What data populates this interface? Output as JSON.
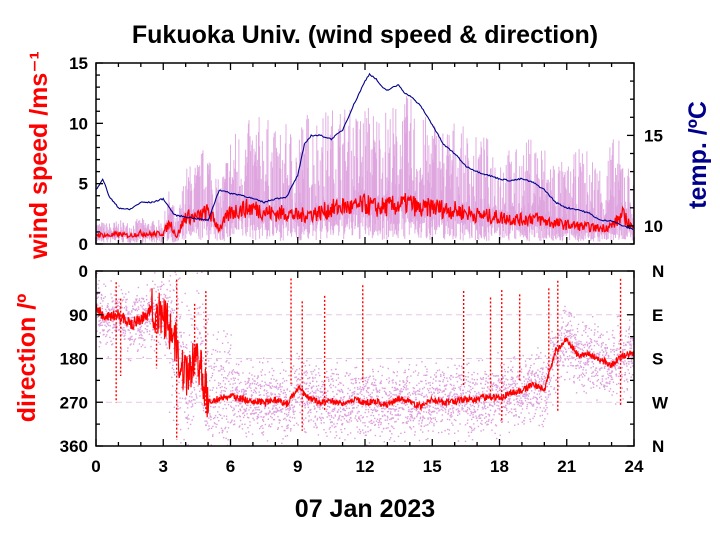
{
  "chart_data": [
    {
      "type": "line",
      "title": "Fukuoka Univ. (wind speed & direction)",
      "ylabel": "wind speed /ms⁻¹",
      "y2label": "temp. /ºC",
      "xlim": [
        0,
        24
      ],
      "ylim": [
        0,
        15
      ],
      "y2lim": [
        9,
        19
      ],
      "x_ticks": [
        "0",
        "3",
        "6",
        "9",
        "12",
        "15",
        "18",
        "21",
        "24"
      ],
      "y_ticks": [
        "0",
        "5",
        "10",
        "15"
      ],
      "y2_ticks": [
        "10",
        "15"
      ],
      "colors": {
        "mean_speed": "#ff0000",
        "gust_range": "#dda0dd",
        "temperature": "#00008b"
      },
      "series": [
        {
          "name": "",
          "role": "mean wind speed",
          "x": [
            0,
            0.5,
            1,
            1.5,
            2,
            2.5,
            3,
            3.3,
            3.6,
            4,
            4.5,
            5,
            5.5,
            6,
            6.5,
            7,
            7.5,
            8,
            8.5,
            9,
            9.5,
            10,
            10.5,
            11,
            11.5,
            12,
            12.5,
            13,
            13.5,
            14,
            14.5,
            15,
            15.5,
            16,
            16.5,
            17,
            17.5,
            18,
            18.5,
            19,
            19.5,
            20,
            20.5,
            21,
            21.5,
            22,
            22.5,
            23,
            23.5,
            24
          ],
          "y": [
            0.8,
            0.7,
            0.8,
            0.7,
            0.9,
            0.8,
            0.9,
            1.8,
            0.6,
            2.3,
            2.2,
            2.7,
            1.3,
            2.6,
            2.9,
            3.0,
            2.7,
            2.5,
            2.6,
            2.3,
            2.5,
            2.6,
            2.9,
            3.1,
            3.0,
            3.3,
            3.0,
            3.1,
            3.2,
            3.4,
            2.8,
            3.1,
            2.9,
            2.8,
            2.6,
            2.4,
            2.3,
            2.2,
            2.1,
            2.0,
            2.2,
            1.9,
            1.7,
            1.6,
            1.5,
            1.4,
            1.3,
            1.5,
            2.4,
            1.2
          ]
        },
        {
          "name": "",
          "role": "wind speed maximum (gust)",
          "x": [
            0,
            0.5,
            1,
            1.5,
            2,
            2.5,
            3,
            3.3,
            3.6,
            4,
            4.5,
            5,
            5.5,
            6,
            6.5,
            7,
            7.5,
            8,
            8.5,
            9,
            9.5,
            10,
            10.5,
            11,
            11.5,
            12,
            12.5,
            13,
            13.5,
            14,
            14.5,
            15,
            15.5,
            16,
            16.5,
            17,
            17.5,
            18,
            18.5,
            19,
            19.5,
            20,
            20.5,
            21,
            21.5,
            22,
            22.5,
            23,
            23.5,
            24
          ],
          "y": [
            2.0,
            1.8,
            2.0,
            1.9,
            2.2,
            2.0,
            2.0,
            5.0,
            2.0,
            6.5,
            7.0,
            9.0,
            5.0,
            9.5,
            10.0,
            10.5,
            11.0,
            9.5,
            10.0,
            10.0,
            11.5,
            11.0,
            11.5,
            12.0,
            11.0,
            12.0,
            11.5,
            11.5,
            12.0,
            12.5,
            10.5,
            11.0,
            10.0,
            10.5,
            9.5,
            9.0,
            9.0,
            8.5,
            8.0,
            8.0,
            9.5,
            8.5,
            7.5,
            6.5,
            8.0,
            8.0,
            7.0,
            9.0,
            8.5,
            5.0
          ]
        },
        {
          "name": "",
          "role": "temperature (right axis)",
          "x": [
            0,
            0.3,
            0.6,
            1,
            1.5,
            2,
            2.5,
            3,
            3.5,
            4,
            4.5,
            5,
            5.5,
            6,
            6.5,
            7,
            7.5,
            8,
            8.5,
            9,
            9.3,
            9.6,
            10,
            10.5,
            11,
            11.5,
            12,
            12.2,
            12.5,
            12.8,
            13,
            13.5,
            13.8,
            14,
            14.5,
            15,
            15.5,
            16,
            16.5,
            17,
            17.5,
            18,
            18.5,
            19,
            19.5,
            20,
            20.5,
            21,
            21.5,
            22,
            22.5,
            23,
            23.5,
            24
          ],
          "y": [
            12.0,
            12.6,
            11.6,
            11.0,
            10.9,
            11.3,
            11.3,
            11.5,
            10.6,
            10.5,
            10.4,
            10.3,
            12.0,
            11.8,
            11.7,
            11.5,
            11.3,
            11.5,
            11.6,
            12.8,
            14.5,
            15.0,
            15.0,
            14.8,
            15.3,
            16.7,
            18.0,
            18.4,
            18.1,
            17.6,
            17.5,
            17.8,
            17.3,
            17.2,
            16.6,
            15.6,
            14.5,
            14.0,
            13.3,
            13.0,
            12.8,
            12.6,
            12.5,
            12.6,
            12.4,
            12.0,
            11.3,
            11.0,
            10.9,
            10.7,
            10.3,
            10.3,
            10.0,
            9.8
          ]
        }
      ]
    },
    {
      "type": "scatter",
      "ylabel": "direction /º",
      "xlabel": "07 Jan 2023",
      "xlim": [
        0,
        24
      ],
      "ylim": [
        360,
        0
      ],
      "x_ticks": [
        "0",
        "3",
        "6",
        "9",
        "12",
        "15",
        "18",
        "21",
        "24"
      ],
      "y_ticks": [
        "0",
        "90",
        "180",
        "270",
        "360"
      ],
      "y2_ticks": [
        "N",
        "E",
        "S",
        "W",
        "N"
      ],
      "colors": {
        "mean_direction": "#ff0000",
        "sample_directions": "#dda0dd"
      },
      "series": [
        {
          "name": "",
          "role": "mean wind direction",
          "x": [
            0,
            0.5,
            1,
            1.5,
            2,
            2.5,
            3,
            3.5,
            4,
            4.5,
            5,
            5.5,
            6,
            6.5,
            7,
            7.5,
            8,
            8.5,
            9,
            9.5,
            10,
            10.5,
            11,
            11.5,
            12,
            12.5,
            13,
            13.5,
            14,
            14.5,
            15,
            15.5,
            16,
            16.5,
            17,
            17.5,
            18,
            18.5,
            19,
            19.5,
            20,
            20.5,
            21,
            21.5,
            22,
            22.5,
            23,
            23.5,
            24
          ],
          "y": [
            80,
            95,
            90,
            110,
            100,
            80,
            90,
            140,
            220,
            170,
            270,
            262,
            258,
            262,
            268,
            270,
            265,
            275,
            240,
            262,
            270,
            268,
            272,
            265,
            270,
            268,
            275,
            262,
            270,
            278,
            265,
            270,
            268,
            262,
            265,
            258,
            262,
            250,
            248,
            232,
            245,
            165,
            140,
            175,
            170,
            182,
            192,
            175,
            168
          ]
        }
      ]
    }
  ]
}
